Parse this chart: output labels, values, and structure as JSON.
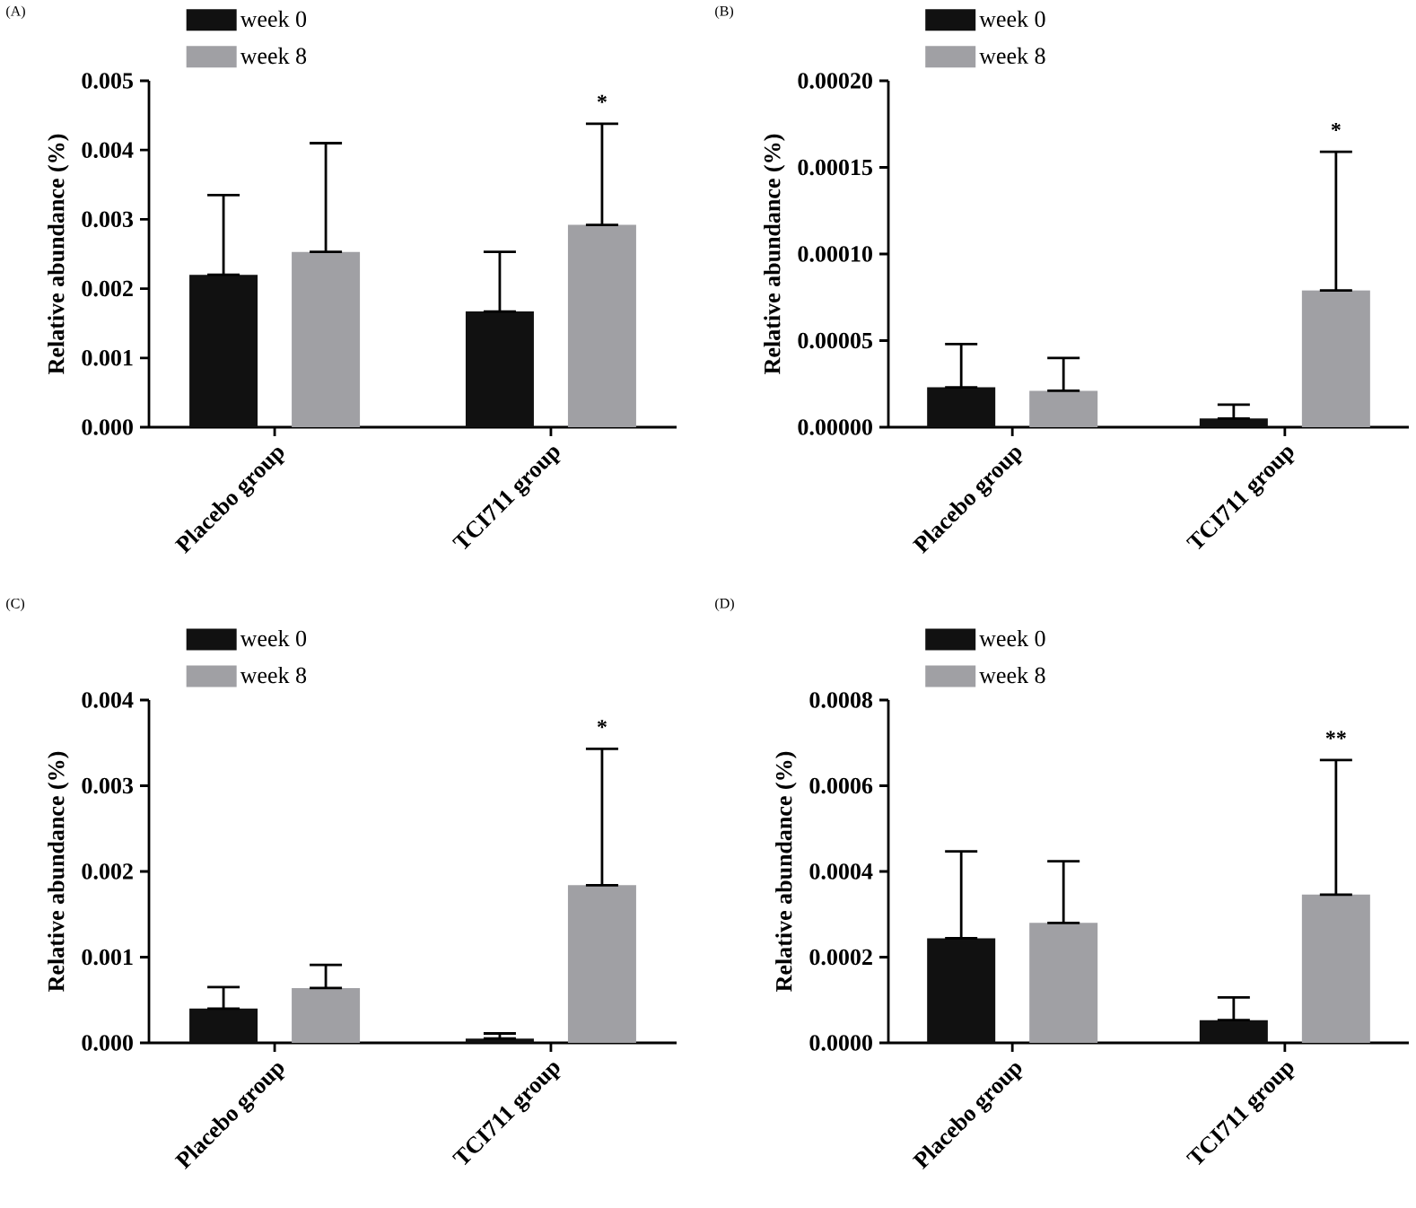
{
  "chart_data": [
    {
      "type": "bar",
      "title": "(A)",
      "ylabel": "Relative abundance (%)",
      "categories": [
        "Placebo group",
        "TCI711 group"
      ],
      "series": [
        {
          "name": "week 0",
          "color": "#111111",
          "values": [
            0.0022,
            0.00167
          ],
          "errors": [
            [
              0.0022,
              0.00335
            ],
            [
              0.00167,
              0.00253
            ]
          ]
        },
        {
          "name": "week 8",
          "color": "#a0a0a4",
          "values": [
            0.00253,
            0.00292
          ],
          "errors": [
            [
              0.00253,
              0.0041
            ],
            [
              0.00292,
              0.00438
            ]
          ]
        }
      ],
      "ylim": [
        0,
        0.005
      ],
      "yticks": [
        {
          "value": 0,
          "label": "0.000"
        },
        {
          "value": 0.001,
          "label": "0.001"
        },
        {
          "value": 0.002,
          "label": "0.002"
        },
        {
          "value": 0.003,
          "label": "0.003"
        },
        {
          "value": 0.004,
          "label": "0.004"
        },
        {
          "value": 0.005,
          "label": "0.005"
        }
      ],
      "legend": "top left",
      "annotations": [
        "*"
      ]
    },
    {
      "type": "bar",
      "title": "(B)",
      "ylabel": "Relative abundance (%)",
      "categories": [
        "Placebo group",
        "TCI711 group"
      ],
      "series": [
        {
          "name": "week 0",
          "color": "#111111",
          "values": [
            2.3e-05,
            5e-06
          ],
          "errors": [
            [
              2.3e-05,
              4.8e-05
            ],
            [
              5e-06,
              1.3e-05
            ]
          ]
        },
        {
          "name": "week 8",
          "color": "#a0a0a4",
          "values": [
            2.1e-05,
            7.9e-05
          ],
          "errors": [
            [
              2.1e-05,
              4e-05
            ],
            [
              7.9e-05,
              0.000159
            ]
          ]
        }
      ],
      "ylim": [
        0,
        0.0002
      ],
      "yticks": [
        {
          "value": 0,
          "label": "0.00000"
        },
        {
          "value": 5e-05,
          "label": "0.00005"
        },
        {
          "value": 0.0001,
          "label": "0.00010"
        },
        {
          "value": 0.00015,
          "label": "0.00015"
        },
        {
          "value": 0.0002,
          "label": "0.00020"
        }
      ],
      "legend": "top left",
      "annotations": [
        "*"
      ]
    },
    {
      "type": "bar",
      "title": "(C)",
      "ylabel": "Relative abundance (%)",
      "categories": [
        "Placebo group",
        "TCI711 group"
      ],
      "series": [
        {
          "name": "week 0",
          "color": "#111111",
          "values": [
            0.0004,
            5e-05
          ],
          "errors": [
            [
              0.0004,
              0.00065
            ],
            [
              5e-05,
              0.00011
            ]
          ]
        },
        {
          "name": "week 8",
          "color": "#a0a0a4",
          "values": [
            0.00064,
            0.00184
          ],
          "errors": [
            [
              0.00064,
              0.00091
            ],
            [
              0.00184,
              0.00343
            ]
          ]
        }
      ],
      "ylim": [
        0,
        0.004
      ],
      "yticks": [
        {
          "value": 0,
          "label": "0.000"
        },
        {
          "value": 0.001,
          "label": "0.001"
        },
        {
          "value": 0.002,
          "label": "0.002"
        },
        {
          "value": 0.003,
          "label": "0.003"
        },
        {
          "value": 0.004,
          "label": "0.004"
        }
      ],
      "legend": "top left",
      "annotations": [
        "*"
      ]
    },
    {
      "type": "bar",
      "title": "(D)",
      "ylabel": "Relative abundance (%)",
      "categories": [
        "Placebo group",
        "TCI711 group"
      ],
      "series": [
        {
          "name": "week 0",
          "color": "#111111",
          "values": [
            0.000244,
            5.3e-05
          ],
          "errors": [
            [
              0.000244,
              0.000447
            ],
            [
              5.3e-05,
              0.000106
            ]
          ]
        },
        {
          "name": "week 8",
          "color": "#a0a0a4",
          "values": [
            0.00028,
            0.000346
          ],
          "errors": [
            [
              0.00028,
              0.000424
            ],
            [
              0.000346,
              0.00066
            ]
          ]
        }
      ],
      "ylim": [
        0,
        0.0008
      ],
      "yticks": [
        {
          "value": 0,
          "label": "0.0000"
        },
        {
          "value": 0.0002,
          "label": "0.0002"
        },
        {
          "value": 0.0004,
          "label": "0.0004"
        },
        {
          "value": 0.0006,
          "label": "0.0006"
        },
        {
          "value": 0.0008,
          "label": "0.0008"
        }
      ],
      "legend": "top left",
      "annotations": [
        "**"
      ]
    }
  ]
}
